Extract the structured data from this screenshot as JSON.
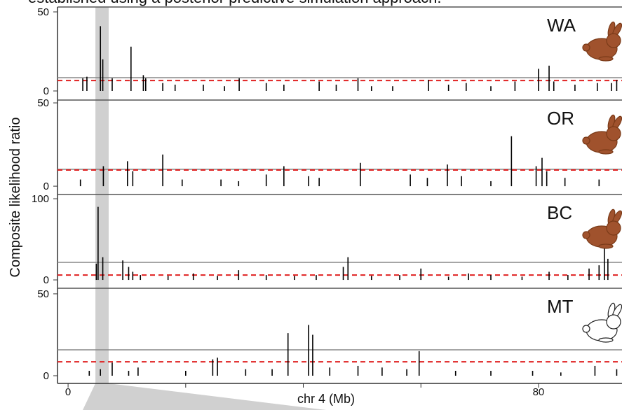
{
  "caption": "established using a posterior predictive simulation approach.",
  "ylabel": "Composite likelihood ratio",
  "highlight_region": [
    4.65,
    6.9
  ],
  "chart_data": [
    {
      "type": "spike",
      "label": "WA",
      "icon_color": "#a0522d",
      "color": "#000000",
      "xlim": [
        -1.8,
        94.2
      ],
      "ylim": [
        -5.75,
        53.1
      ],
      "yticks": [
        0,
        50
      ],
      "reference_lines": [
        {
          "value": 8.4,
          "style": "solid",
          "color": "#888888"
        },
        {
          "value": 6.6,
          "style": "dashed",
          "color": "#e02020"
        }
      ],
      "x": [
        2.5,
        3.2,
        5.5,
        5.9,
        7.5,
        10.7,
        12.8,
        13.2,
        16.1,
        18.2,
        23,
        26.6,
        29.1,
        33.7,
        36.7,
        42.7,
        45.6,
        49.3,
        51.6,
        55.2,
        61.3,
        64.7,
        67.7,
        71.9,
        76,
        80,
        81.8,
        82.6,
        86.2,
        90,
        92.4,
        93.3
      ],
      "values": [
        8,
        9,
        41,
        20,
        8,
        28,
        10,
        8,
        5,
        4,
        4,
        3,
        8,
        5,
        4,
        6,
        4,
        8,
        3,
        3,
        7,
        4,
        5,
        3,
        6,
        14,
        16,
        6,
        4,
        5,
        5,
        7
      ]
    },
    {
      "type": "spike",
      "label": "OR",
      "icon_color": "#a0522d",
      "color": "#000000",
      "xlim": [
        -1.8,
        94.2
      ],
      "ylim": [
        -5.0,
        51.7
      ],
      "yticks": [
        0,
        50
      ],
      "reference_lines": [
        {
          "value": 10.1,
          "style": "solid",
          "color": "#888888"
        },
        {
          "value": 9.7,
          "style": "dashed",
          "color": "#e02020"
        }
      ],
      "x": [
        2.1,
        6,
        10.1,
        11,
        16.1,
        19.4,
        26,
        29,
        33.7,
        36.7,
        40.9,
        42.7,
        49.7,
        58.2,
        61.1,
        64.5,
        66.9,
        71.9,
        75.4,
        79.6,
        80.6,
        81.4,
        84.5,
        90.3
      ],
      "values": [
        4,
        12,
        15,
        9,
        19,
        4,
        4,
        3,
        7,
        12,
        6,
        5,
        14,
        7,
        5,
        13,
        6,
        3,
        30,
        12,
        17,
        9,
        5,
        4
      ]
    },
    {
      "type": "spike",
      "label": "BC",
      "icon_color": "#a0522d",
      "color": "#000000",
      "xlim": [
        -1.8,
        94.2
      ],
      "ylim": [
        -10.3,
        105.2
      ],
      "yticks": [
        0,
        100
      ],
      "reference_lines": [
        {
          "value": 21.6,
          "style": "solid",
          "color": "#888888"
        },
        {
          "value": 6.0,
          "style": "dashed",
          "color": "#e02020"
        }
      ],
      "x": [
        4.8,
        5.1,
        5.9,
        9.3,
        10.3,
        11,
        12.3,
        17,
        21.3,
        25.4,
        29,
        33.7,
        38.5,
        42.2,
        46.8,
        47.6,
        51.6,
        56.4,
        60,
        64.7,
        68.1,
        71.9,
        77.2,
        81.8,
        85,
        88.6,
        90.3,
        91.2,
        91.8
      ],
      "values": [
        20,
        90,
        28,
        24,
        16,
        10,
        6,
        5,
        8,
        5,
        12,
        6,
        5,
        6,
        16,
        28,
        5,
        6,
        14,
        4,
        8,
        6,
        4,
        10,
        6,
        14,
        18,
        40,
        26
      ]
    },
    {
      "type": "spike",
      "label": "MT",
      "icon_color": "#ffffff",
      "color": "#000000",
      "xlim": [
        -1.8,
        94.2
      ],
      "ylim": [
        -4.7,
        53.4
      ],
      "yticks": [
        0,
        50
      ],
      "reference_lines": [
        {
          "value": 15.8,
          "style": "solid",
          "color": "#888888"
        },
        {
          "value": 8.5,
          "style": "dashed",
          "color": "#e02020"
        }
      ],
      "x": [
        3.6,
        5.5,
        7.5,
        10.3,
        11.9,
        20,
        24.6,
        25.4,
        30.2,
        34.7,
        37.4,
        40.9,
        41.6,
        44.5,
        49.3,
        53.4,
        57.6,
        59.7,
        65.9,
        71.9,
        79,
        83.8,
        89.6,
        93.3
      ],
      "values": [
        3,
        4,
        8,
        3,
        5,
        3,
        10,
        11,
        4,
        4,
        26,
        31,
        25,
        5,
        6,
        5,
        4,
        15,
        3,
        3,
        3,
        2,
        6,
        4
      ],
      "xlabel": "chr 4 (Mb)",
      "xticks": [
        0,
        80
      ],
      "xminorticks": [
        20,
        40,
        60
      ]
    }
  ]
}
